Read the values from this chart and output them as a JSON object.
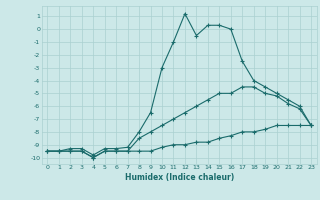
{
  "xlabel": "Humidex (Indice chaleur)",
  "ylabel": "",
  "xlim": [
    -0.5,
    23.5
  ],
  "ylim": [
    -10.5,
    1.8
  ],
  "yticks": [
    1,
    0,
    -1,
    -2,
    -3,
    -4,
    -5,
    -6,
    -7,
    -8,
    -9,
    -10
  ],
  "xticks": [
    0,
    1,
    2,
    3,
    4,
    5,
    6,
    7,
    8,
    9,
    10,
    11,
    12,
    13,
    14,
    15,
    16,
    17,
    18,
    19,
    20,
    21,
    22,
    23
  ],
  "bg_color": "#cce8e8",
  "grid_color": "#aad0d0",
  "line_color": "#1a6b6b",
  "line1_x": [
    0,
    1,
    2,
    3,
    4,
    5,
    6,
    7,
    8,
    9,
    10,
    11,
    12,
    13,
    14,
    15,
    16,
    17,
    18,
    19,
    20,
    21,
    22,
    23
  ],
  "line1_y": [
    -9.5,
    -9.5,
    -9.5,
    -9.5,
    -10.0,
    -9.5,
    -9.5,
    -9.5,
    -9.5,
    -9.5,
    -9.2,
    -9.0,
    -9.0,
    -8.8,
    -8.8,
    -8.5,
    -8.3,
    -8.0,
    -8.0,
    -7.8,
    -7.5,
    -7.5,
    -7.5,
    -7.5
  ],
  "line2_x": [
    0,
    1,
    2,
    3,
    4,
    5,
    6,
    7,
    8,
    9,
    10,
    11,
    12,
    13,
    14,
    15,
    16,
    17,
    18,
    19,
    20,
    21,
    22,
    23
  ],
  "line2_y": [
    -9.5,
    -9.5,
    -9.5,
    -9.5,
    -10.0,
    -9.5,
    -9.5,
    -9.5,
    -8.5,
    -8.0,
    -7.5,
    -7.0,
    -6.5,
    -6.0,
    -5.5,
    -5.0,
    -5.0,
    -4.5,
    -4.5,
    -5.0,
    -5.2,
    -5.8,
    -6.2,
    -7.5
  ],
  "line3_x": [
    0,
    1,
    2,
    3,
    4,
    5,
    6,
    7,
    8,
    9,
    10,
    11,
    12,
    13,
    14,
    15,
    16,
    17,
    18,
    19,
    20,
    21,
    22,
    23
  ],
  "line3_y": [
    -9.5,
    -9.5,
    -9.3,
    -9.3,
    -9.8,
    -9.3,
    -9.3,
    -9.2,
    -8.0,
    -6.5,
    -3.0,
    -1.0,
    1.2,
    -0.5,
    0.3,
    0.3,
    0.0,
    -2.5,
    -4.0,
    -4.5,
    -5.0,
    -5.5,
    -6.0,
    -7.5
  ]
}
